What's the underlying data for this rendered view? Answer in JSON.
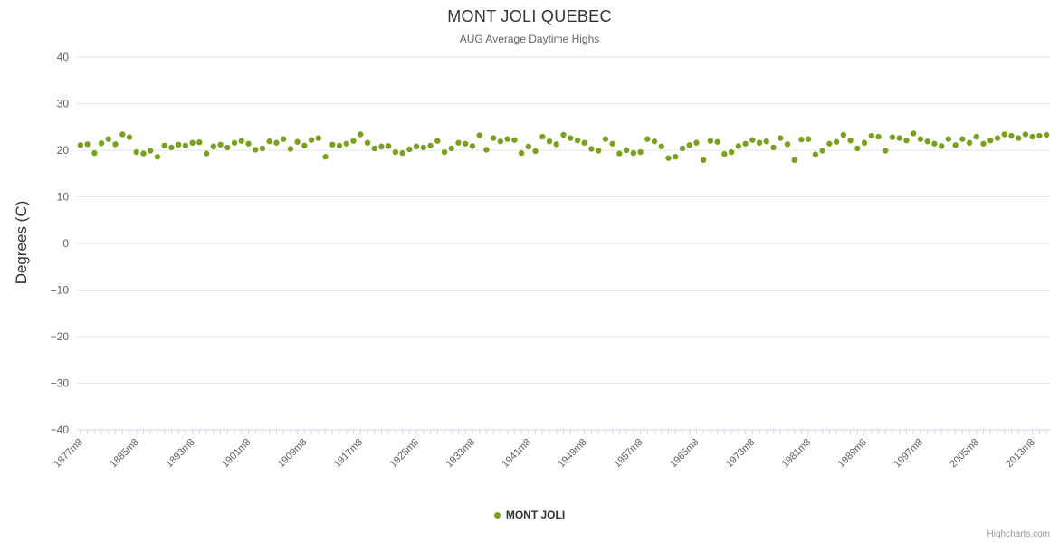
{
  "header": {
    "title": "MONT JOLI QUEBEC",
    "subtitle": "AUG Average Daytime Highs"
  },
  "legend": {
    "label": "MONT JOLI"
  },
  "credits": {
    "label": "Highcharts.com"
  },
  "colors": {
    "point": "#7aa11e",
    "grid": "#e6e6e6",
    "axis_label": "#606060",
    "axis_line": "#ccd6eb",
    "title": "#333333"
  },
  "chart_data": {
    "type": "scatter",
    "title": "MONT JOLI QUEBEC",
    "subtitle": "AUG Average Daytime Highs",
    "ylabel": "Degrees (C)",
    "xlabel": "",
    "ylim": [
      -40,
      40
    ],
    "y_tick_interval": 10,
    "x_start_year": 1877,
    "x_label_suffix": "m8",
    "x_tick_interval": 8,
    "legend_position": "bottom",
    "grid": true,
    "series_name": "MONT JOLI",
    "values": [
      21.1,
      21.3,
      19.4,
      21.5,
      22.4,
      21.3,
      23.4,
      22.8,
      19.6,
      19.3,
      19.9,
      18.6,
      21.0,
      20.6,
      21.2,
      21.0,
      21.6,
      21.7,
      19.3,
      20.8,
      21.2,
      20.6,
      21.6,
      22.0,
      21.4,
      20.1,
      20.4,
      21.9,
      21.6,
      22.4,
      20.3,
      21.8,
      21.0,
      22.2,
      22.6,
      18.6,
      21.2,
      21.0,
      21.4,
      22.0,
      23.4,
      21.6,
      20.4,
      20.8,
      20.9,
      19.6,
      19.4,
      20.2,
      20.8,
      20.6,
      21.0,
      22.0,
      19.6,
      20.4,
      21.6,
      21.4,
      20.9,
      23.2,
      20.1,
      22.6,
      21.9,
      22.4,
      22.2,
      19.4,
      20.8,
      19.8,
      22.9,
      21.9,
      21.3,
      23.3,
      22.6,
      22.1,
      21.6,
      20.3,
      19.9,
      22.4,
      21.4,
      19.3,
      20.0,
      19.4,
      19.6,
      22.4,
      21.9,
      20.8,
      18.3,
      18.6,
      20.4,
      21.1,
      21.6,
      17.9,
      22.0,
      21.8,
      19.2,
      19.6,
      20.9,
      21.4,
      22.2,
      21.6,
      21.9,
      20.6,
      22.6,
      21.3,
      17.9,
      22.3,
      22.4,
      19.1,
      19.9,
      21.4,
      21.8,
      23.3,
      22.1,
      20.4,
      21.6,
      23.1,
      22.9,
      19.9,
      22.8,
      22.6,
      22.1,
      23.6,
      22.4,
      21.9,
      21.4,
      20.9,
      22.4,
      21.1,
      22.4,
      21.6,
      22.9,
      21.4,
      22.1,
      22.6,
      23.4,
      23.1,
      22.6,
      23.4,
      22.9,
      23.1,
      23.3
    ]
  }
}
